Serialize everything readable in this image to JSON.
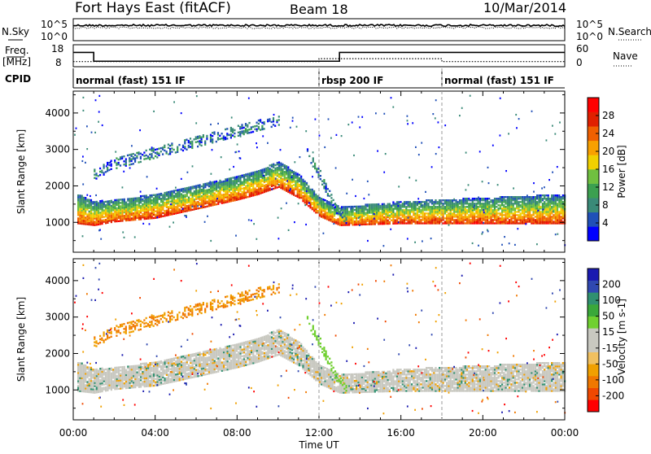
{
  "header": {
    "station": "Fort Hays East (fitACF)",
    "beam": "Beam 18",
    "date": "10/Mar/2014"
  },
  "top_panels": {
    "nsky_label": "N.Sky",
    "nsearch_label": "N.Search",
    "freq_label_line1": "Freq.",
    "freq_label_line2": "[MHz]",
    "nave_label": "Nave",
    "cpid_label": "CPID",
    "ticks": {
      "n_left_top": "10^5",
      "n_left_bottom": "10^0",
      "n_right_top": "10^5",
      "n_right_bottom": "10^0",
      "freq_top": "18",
      "freq_bottom": "8",
      "nave_top": "60",
      "nave_bottom": "0"
    }
  },
  "cpid_segments": [
    {
      "label": "normal (fast) 151 IF",
      "start_hour": 0
    },
    {
      "label": "rbsp 200 IF",
      "start_hour": 12
    },
    {
      "label": "normal (fast) 151 IF",
      "start_hour": 18
    }
  ],
  "axes": {
    "x_label": "Time UT",
    "x_ticks": [
      "00:00",
      "04:00",
      "08:00",
      "12:00",
      "16:00",
      "20:00",
      "00:00"
    ],
    "y_label": "Slant Range [km]",
    "y_ticks": [
      "1000",
      "2000",
      "3000",
      "4000"
    ]
  },
  "power_colorbar": {
    "label": "Power [dB]",
    "ticks": [
      "4",
      "8",
      "12",
      "16",
      "20",
      "24",
      "28"
    ],
    "colors": [
      "#0000ff",
      "#2050b8",
      "#3a8a78",
      "#3ca050",
      "#70c040",
      "#f0d000",
      "#f8a000",
      "#f06000",
      "#e02000",
      "#ff0000"
    ]
  },
  "velocity_colorbar": {
    "label": "Velocity [m s-1]",
    "ticks": [
      "200",
      "100",
      "50",
      "15",
      "-15",
      "-50",
      "-100",
      "-200"
    ],
    "colors": [
      "#1a1ab0",
      "#3048b0",
      "#309070",
      "#3aa83a",
      "#70d030",
      "#c8c8c0",
      "#c8c8c0",
      "#f0c060",
      "#f0a000",
      "#f07800",
      "#f04800",
      "#ff0000"
    ]
  },
  "chart_data": {
    "type": "heatmap",
    "x_range_hours": [
      0,
      24
    ],
    "y_range_km": [
      180,
      4600
    ],
    "freq_mhz_segments": [
      {
        "start_hour": 0,
        "end_hour": 1.0,
        "value": 14.5
      },
      {
        "start_hour": 1.0,
        "end_hour": 13.0,
        "value": 10.5
      },
      {
        "start_hour": 13.0,
        "end_hour": 24,
        "value": 14.5
      }
    ],
    "nave_segments": [
      {
        "start_hour": 0,
        "end_hour": 12.0,
        "value": 14
      },
      {
        "start_hour": 12.0,
        "end_hour": 18.0,
        "value": 22
      },
      {
        "start_hour": 18.0,
        "end_hour": 24,
        "value": 14
      }
    ],
    "dashed_time_markers_hours": [
      12,
      18
    ],
    "echo_bands": [
      {
        "name": "main",
        "points": [
          [
            0.2,
            1000,
            1800
          ],
          [
            1,
            950,
            1600
          ],
          [
            2,
            1050,
            1650
          ],
          [
            4,
            1150,
            1800
          ],
          [
            6,
            1400,
            2050
          ],
          [
            8,
            1650,
            2300
          ],
          [
            9,
            1800,
            2450
          ],
          [
            10,
            2000,
            2700
          ],
          [
            11,
            1700,
            2350
          ],
          [
            12,
            1200,
            1700
          ],
          [
            13,
            950,
            1450
          ],
          [
            16,
            1000,
            1600
          ],
          [
            20,
            1000,
            1700
          ],
          [
            24,
            1000,
            1800
          ]
        ]
      },
      {
        "name": "upper",
        "points": [
          [
            1,
            2200,
            2500
          ],
          [
            2,
            2500,
            2800
          ],
          [
            4,
            2800,
            3100
          ],
          [
            6,
            3100,
            3400
          ],
          [
            8,
            3400,
            3700
          ],
          [
            10,
            3700,
            3950
          ]
        ]
      },
      {
        "name": "steep",
        "points": [
          [
            11.4,
            2850,
            3050
          ],
          [
            12,
            2200,
            2500
          ],
          [
            12.8,
            1300,
            1500
          ],
          [
            13.3,
            1000,
            1200
          ]
        ]
      }
    ]
  }
}
